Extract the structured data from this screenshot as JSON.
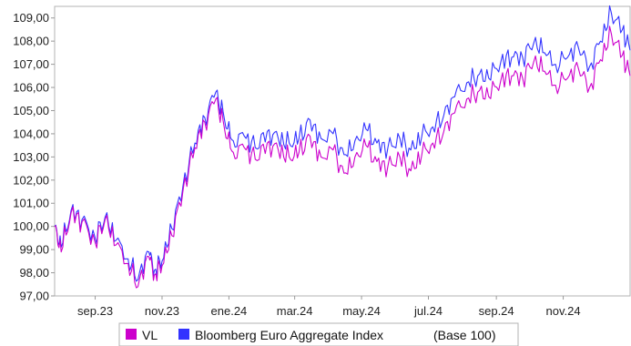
{
  "chart_data": {
    "type": "line",
    "ylim": [
      97.0,
      109.5
    ],
    "y_ticks": [
      "97,00",
      "98,00",
      "99,00",
      "100,00",
      "101,00",
      "102,00",
      "103,00",
      "104,00",
      "105,00",
      "106,00",
      "107,00",
      "108,00",
      "109,00"
    ],
    "x_ticks": [
      "sep.23",
      "nov.23",
      "ene.24",
      "mar.24",
      "may.24",
      "jul.24",
      "sep.24",
      "nov.24"
    ],
    "x_range": [
      "2023-07-26",
      "2025-01-01"
    ],
    "x": [
      "2023-07-26",
      "2023-08-01",
      "2023-08-10",
      "2023-08-20",
      "2023-09-01",
      "2023-09-10",
      "2023-09-20",
      "2023-10-01",
      "2023-10-10",
      "2023-10-20",
      "2023-10-25",
      "2023-11-01",
      "2023-11-10",
      "2023-11-20",
      "2023-12-01",
      "2023-12-10",
      "2023-12-20",
      "2023-12-28",
      "2024-01-05",
      "2024-01-15",
      "2024-01-25",
      "2024-02-05",
      "2024-02-15",
      "2024-02-25",
      "2024-03-05",
      "2024-03-15",
      "2024-03-25",
      "2024-04-05",
      "2024-04-15",
      "2024-04-25",
      "2024-05-05",
      "2024-05-15",
      "2024-05-25",
      "2024-06-05",
      "2024-06-15",
      "2024-06-25",
      "2024-07-05",
      "2024-07-15",
      "2024-07-25",
      "2024-08-05",
      "2024-08-15",
      "2024-08-25",
      "2024-09-05",
      "2024-09-15",
      "2024-09-25",
      "2024-10-05",
      "2024-10-15",
      "2024-10-25",
      "2024-11-05",
      "2024-11-15",
      "2024-11-25",
      "2024-12-05",
      "2024-12-15",
      "2024-12-25",
      "2025-01-01"
    ],
    "series": [
      {
        "name": "VL",
        "color": "#cc00cc",
        "values": [
          100.0,
          98.9,
          100.6,
          100.2,
          99.3,
          100.3,
          99.2,
          98.4,
          97.4,
          98.7,
          97.9,
          98.3,
          99.6,
          101.5,
          103.4,
          104.5,
          105.5,
          104.2,
          103.2,
          103.4,
          102.9,
          103.6,
          103.3,
          103.0,
          103.2,
          103.9,
          103.0,
          103.3,
          102.3,
          103.0,
          103.5,
          102.8,
          102.6,
          103.0,
          102.4,
          103.1,
          103.6,
          104.1,
          104.9,
          105.5,
          105.8,
          105.6,
          106.3,
          106.5,
          106.4,
          107.1,
          106.7,
          106.1,
          106.4,
          106.8,
          106.0,
          107.2,
          108.3,
          107.4,
          106.5
        ]
      },
      {
        "name": "Bloomberg Euro Aggregate Index",
        "color": "#3333ff",
        "values": [
          100.0,
          99.1,
          100.7,
          100.3,
          99.5,
          100.4,
          99.4,
          98.6,
          97.7,
          98.9,
          98.1,
          98.5,
          99.9,
          101.7,
          103.6,
          104.7,
          105.8,
          104.6,
          103.7,
          103.9,
          103.4,
          104.1,
          103.8,
          103.6,
          103.8,
          104.6,
          103.8,
          104.0,
          103.1,
          103.7,
          104.2,
          103.6,
          103.4,
          103.8,
          103.3,
          103.9,
          104.3,
          104.8,
          105.6,
          106.2,
          106.5,
          106.4,
          107.1,
          107.3,
          107.3,
          107.9,
          107.5,
          107.0,
          107.3,
          107.7,
          106.9,
          108.0,
          109.2,
          108.5,
          107.6
        ]
      }
    ]
  },
  "legend": {
    "items": [
      {
        "label": "VL",
        "color": "#cc00cc"
      },
      {
        "label": "Bloomberg Euro Aggregate Index",
        "color": "#3333ff"
      }
    ],
    "suffix": "(Base 100)"
  }
}
